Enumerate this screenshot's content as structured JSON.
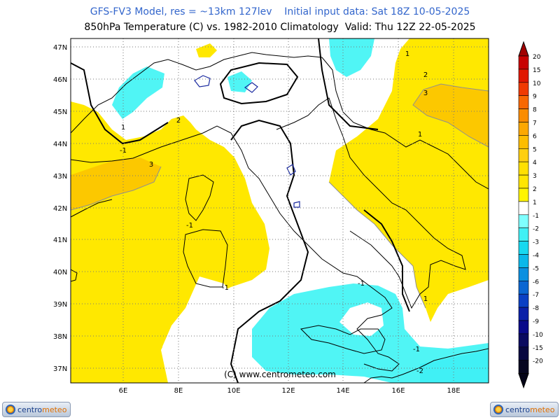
{
  "header": {
    "line1": "GFS-FV3 Model, res = ~13km 127lev    Initial input data: Sat 18Z 10-05-2025",
    "line2": "850hPa Temperature (C) vs. 1982-2010 Climatology  Valid: Thu 12Z 22-05-2025"
  },
  "map": {
    "lat_labels": [
      "47N",
      "46N",
      "45N",
      "44N",
      "43N",
      "42N",
      "41N",
      "40N",
      "39N",
      "38N",
      "37N"
    ],
    "lon_labels": [
      "6E",
      "8E",
      "10E",
      "12E",
      "14E",
      "16E",
      "18E"
    ],
    "watermark": "(C) www.centrometeo.com",
    "contour_labels": [
      "1",
      "-1",
      "2",
      "3",
      "-1",
      "3",
      "2",
      "1",
      "-1",
      "1",
      "-1",
      "-1",
      "-2",
      "1",
      "2",
      "3",
      "1"
    ]
  },
  "colorbar": {
    "labels": [
      "20",
      "15",
      "10",
      "9",
      "8",
      "7",
      "6",
      "5",
      "4",
      "3",
      "2",
      "1",
      "-1",
      "-2",
      "-3",
      "-4",
      "-5",
      "-6",
      "-7",
      "-8",
      "-9",
      "-10",
      "-15",
      "-20"
    ],
    "colors": [
      "#c80000",
      "#e01800",
      "#f03a00",
      "#f86800",
      "#fa8c00",
      "#fca800",
      "#fdbd00",
      "#fecf10",
      "#ffe000",
      "#ffe600",
      "#fff500",
      "#ffffff",
      "#7fffff",
      "#40f0f5",
      "#18d8f0",
      "#0ab8ea",
      "#0a90e0",
      "#0a66d2",
      "#0a40c4",
      "#0a20a8",
      "#0a0a8a",
      "#0a0a60",
      "#060640",
      "#060620"
    ]
  },
  "logos": {
    "left_text_a": "centro",
    "left_text_b": "meteo",
    "right_text_a": "centro",
    "right_text_b": "meteo"
  },
  "colors": {
    "yellow": "#ffe800",
    "orange": "#fcc800",
    "cyan": "#50f5f5",
    "border": "#000000",
    "lakes": "#1a2aa0"
  }
}
